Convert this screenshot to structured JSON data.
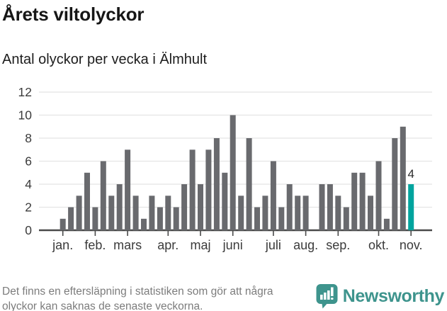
{
  "chart_data": {
    "type": "bar",
    "title": "Årets viltolyckor",
    "subtitle": "Antal olyckor per vecka i Älmhult",
    "values": [
      1,
      2,
      3,
      5,
      2,
      6,
      3,
      4,
      7,
      3,
      1,
      3,
      2,
      3,
      2,
      4,
      7,
      4,
      7,
      8,
      5,
      10,
      3,
      8,
      2,
      3,
      6,
      2,
      4,
      3,
      3,
      0,
      4,
      4,
      3,
      2,
      5,
      5,
      3,
      6,
      1,
      8,
      9,
      4
    ],
    "ylim": [
      0,
      12
    ],
    "yticks": [
      0,
      2,
      4,
      6,
      8,
      10,
      12
    ],
    "grid": true,
    "legend": "none",
    "bar_color": "#696a6e",
    "highlight_color": "#00a49e",
    "highlighted_week": 44,
    "highlight_label": "4",
    "month_ticks": [
      {
        "label": "jan.",
        "week": 1
      },
      {
        "label": "feb.",
        "week": 5
      },
      {
        "label": "mars",
        "week": 9
      },
      {
        "label": "apr.",
        "week": 14
      },
      {
        "label": "maj",
        "week": 18
      },
      {
        "label": "juni",
        "week": 22
      },
      {
        "label": "juli",
        "week": 27
      },
      {
        "label": "aug.",
        "week": 31
      },
      {
        "label": "sep.",
        "week": 35
      },
      {
        "label": "okt.",
        "week": 40
      },
      {
        "label": "nov.",
        "week": 44
      }
    ]
  },
  "footer": {
    "note_lines": [
      "Det finns en eftersläpning i statistiken som gör att några",
      "olyckor kan saknas de senaste veckorna."
    ],
    "brand": "Newsworthy",
    "brand_color": "#3e948d"
  }
}
